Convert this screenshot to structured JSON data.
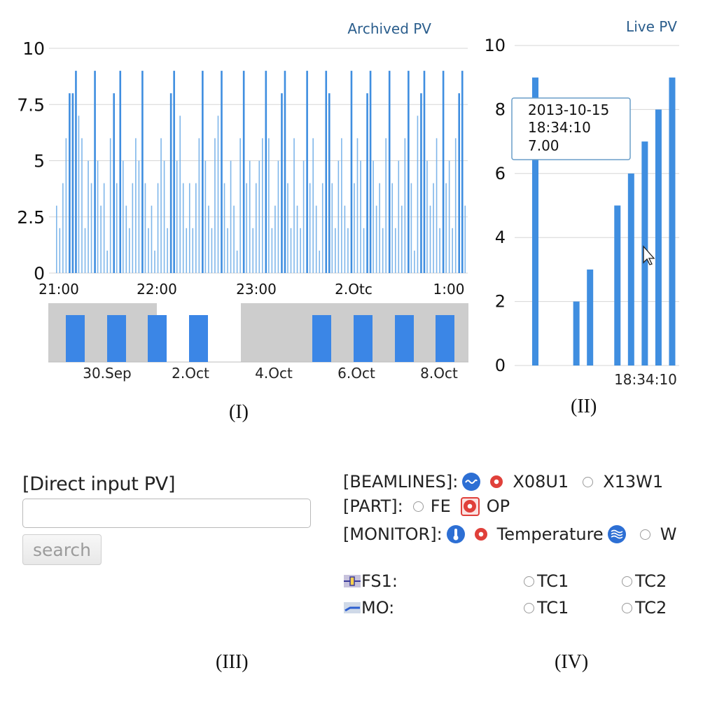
{
  "archived": {
    "title": "Archived PV",
    "y_ticks": [
      "10",
      "7.5",
      "5",
      "2.5",
      "0"
    ],
    "x_ticks": [
      "21:00",
      "22:00",
      "23:00",
      "2.Otc",
      "1:00"
    ],
    "navigator_labels": [
      "30.Sep",
      "2.Oct",
      "4.Oct",
      "6.Oct",
      "8.Oct"
    ]
  },
  "live": {
    "title": "Live PV",
    "y_ticks": [
      "10",
      "8",
      "6",
      "4",
      "2",
      "0"
    ],
    "x_tick": "18:34:10",
    "tooltip": {
      "date": "2013-10-15",
      "time": "18:34:10",
      "value": "7.00"
    }
  },
  "captions": {
    "p1": "(I)",
    "p2": "(II)",
    "p3": "(III)",
    "p4": "(IV)"
  },
  "direct_input": {
    "heading": "[Direct input PV]",
    "value": "",
    "placeholder": "",
    "search_label": "search"
  },
  "selector": {
    "beamlines_label": "[BEAMLINES]:",
    "beamline_options": [
      {
        "label": "X08U1",
        "selected": true
      },
      {
        "label": "X13W1",
        "selected": false
      }
    ],
    "part_label": "[PART]:",
    "part_options": [
      {
        "label": "FE",
        "selected": false
      },
      {
        "label": "OP",
        "selected": true
      }
    ],
    "monitor_label": "[MONITOR]:",
    "monitor_options": [
      {
        "label": "Temperature",
        "selected": true
      },
      {
        "label": "W",
        "selected": false
      }
    ],
    "components": [
      {
        "name": "FS1:",
        "options": [
          "TC1",
          "TC2"
        ]
      },
      {
        "name": "MO:",
        "options": [
          "TC1",
          "TC2"
        ]
      }
    ]
  },
  "colors": {
    "bar": "#3f8ee0",
    "bar_light": "#7fb6ea",
    "grid": "#d6d6d6",
    "navigator_bg": "#cdcdcd",
    "navigator_bar": "#3b86e6",
    "title": "#2a5d8c",
    "radio_on": "#e0403a"
  },
  "chart_data": [
    {
      "type": "bar",
      "title": "Archived PV",
      "x_ticks": [
        "21:00",
        "22:00",
        "23:00",
        "2.Otc",
        "1:00"
      ],
      "ylim": [
        0,
        10
      ],
      "y_ticks": [
        0,
        2.5,
        5,
        7.5,
        10
      ],
      "grid": true,
      "values": [
        3,
        2,
        4,
        6,
        8,
        8,
        9,
        7,
        6,
        2,
        5,
        4,
        9,
        5,
        3,
        4,
        1,
        6,
        8,
        4,
        9,
        5,
        3,
        2,
        4,
        6,
        5,
        9,
        4,
        2,
        3,
        1,
        4,
        6,
        5,
        2,
        8,
        9,
        5,
        7,
        4,
        2,
        4,
        2,
        4,
        6,
        9,
        5,
        3,
        2,
        6,
        7,
        9,
        4,
        2,
        5,
        3,
        1,
        6,
        9,
        4,
        5,
        2,
        4,
        5,
        6,
        9,
        6,
        2,
        3,
        5,
        8,
        9,
        4,
        2,
        6,
        3,
        2,
        5,
        9,
        4,
        6,
        3,
        1,
        4,
        9,
        8,
        4,
        2,
        5,
        6,
        3,
        2,
        9,
        4,
        6,
        5,
        2,
        8,
        9,
        5,
        3,
        4,
        2,
        6,
        9,
        4,
        2,
        5,
        3,
        6,
        9,
        4,
        1,
        7,
        8,
        9,
        5,
        3,
        4,
        6,
        2,
        9,
        4,
        5,
        2,
        6,
        8,
        9,
        3
      ]
    },
    {
      "type": "bar",
      "title": "Live PV",
      "ylim": [
        0,
        10
      ],
      "y_ticks": [
        0,
        2,
        4,
        6,
        8,
        10
      ],
      "grid": true,
      "x_tick": "18:34:10",
      "values": [
        9,
        0,
        0,
        2,
        3,
        0,
        5,
        6,
        7,
        8,
        9
      ]
    }
  ]
}
